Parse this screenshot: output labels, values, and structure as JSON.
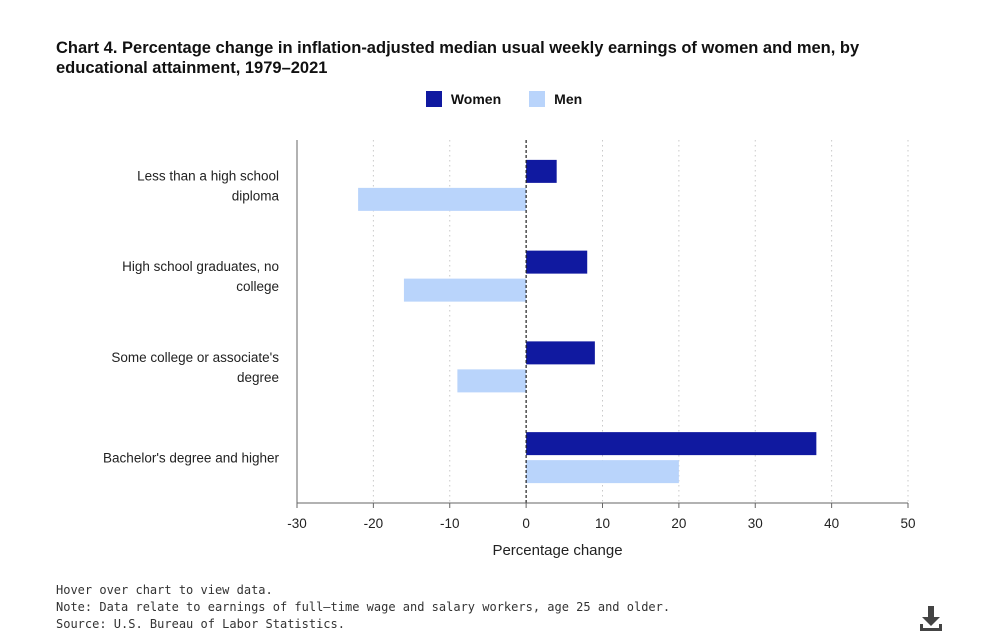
{
  "chart_data": {
    "type": "bar",
    "orientation": "horizontal",
    "title": "Chart 4. Percentage change in inflation-adjusted median usual weekly earnings of women and men, by educational attainment, 1979–2021",
    "categories": [
      [
        "Less than a high school",
        "diploma"
      ],
      [
        "High school graduates, no",
        "college"
      ],
      [
        "Some college or associate's",
        "degree"
      ],
      [
        "Bachelor's degree and higher"
      ]
    ],
    "series": [
      {
        "name": "Women",
        "color": "#1019a0",
        "values": [
          4,
          8,
          9,
          38
        ]
      },
      {
        "name": "Men",
        "color": "#b9d4fb",
        "values": [
          -22,
          -16,
          -9,
          20
        ]
      }
    ],
    "xlabel": "Percentage change",
    "ylabel": "",
    "xlim": [
      -30,
      50
    ],
    "xticks": [
      -30,
      -20,
      -10,
      0,
      10,
      20,
      30,
      40,
      50
    ],
    "grid": "vertical-dotted",
    "legend": "top-center"
  },
  "footnotes": {
    "hover": "Hover over chart to view data.",
    "note": "Note: Data relate to earnings of full–time wage and salary workers, age 25 and older.",
    "source": "Source: U.S. Bureau of Labor Statistics."
  },
  "download_icon": "download-icon"
}
